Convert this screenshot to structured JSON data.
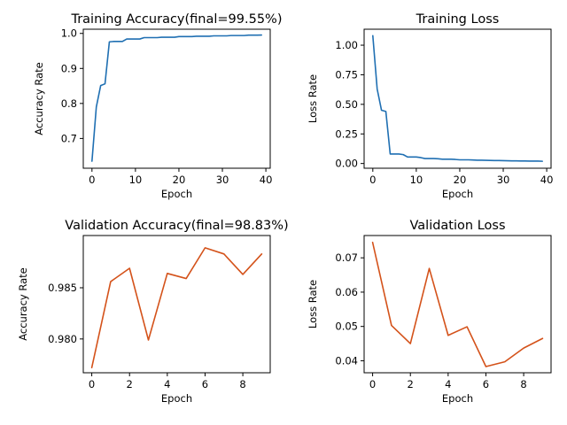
{
  "chart_data": [
    {
      "type": "line",
      "title": "Training Accuracy(final=99.55%)",
      "xlabel": "Epoch",
      "ylabel": "Accuracy Rate",
      "xlim": [
        -2,
        41
      ],
      "ylim": [
        0.615,
        1.012
      ],
      "xticks": [
        0,
        10,
        20,
        30,
        40
      ],
      "xtick_labels": [
        "0",
        "10",
        "20",
        "30",
        "40"
      ],
      "yticks": [
        0.7,
        0.8,
        0.9,
        1.0
      ],
      "ytick_labels": [
        "0.7",
        "0.8",
        "0.9",
        "1.0"
      ],
      "color": "#1f6fb2",
      "series": [
        {
          "x": [
            0,
            1,
            2,
            3,
            4,
            5,
            6,
            7,
            8,
            9,
            10,
            11,
            12,
            13,
            14,
            15,
            16,
            17,
            18,
            19,
            20,
            21,
            22,
            23,
            24,
            25,
            26,
            27,
            28,
            29,
            30,
            31,
            32,
            33,
            34,
            35,
            36,
            37,
            38,
            39
          ],
          "values": [
            0.635,
            0.79,
            0.851,
            0.856,
            0.976,
            0.977,
            0.977,
            0.977,
            0.984,
            0.984,
            0.984,
            0.984,
            0.988,
            0.988,
            0.988,
            0.988,
            0.989,
            0.989,
            0.989,
            0.989,
            0.991,
            0.991,
            0.991,
            0.991,
            0.992,
            0.992,
            0.992,
            0.992,
            0.993,
            0.993,
            0.993,
            0.993,
            0.994,
            0.994,
            0.994,
            0.994,
            0.995,
            0.995,
            0.995,
            0.9955
          ]
        }
      ]
    },
    {
      "type": "line",
      "title": "Training Loss",
      "xlabel": "Epoch",
      "ylabel": "Loss Rate",
      "xlim": [
        -2,
        41
      ],
      "ylim": [
        -0.04,
        1.135
      ],
      "xticks": [
        0,
        10,
        20,
        30,
        40
      ],
      "xtick_labels": [
        "0",
        "10",
        "20",
        "30",
        "40"
      ],
      "yticks": [
        0,
        0.25,
        0.5,
        0.75,
        1.0
      ],
      "ytick_labels": [
        "0.00",
        "0.25",
        "0.50",
        "0.75",
        "1.00"
      ],
      "color": "#1f6fb2",
      "series": [
        {
          "x": [
            0,
            1,
            2,
            3,
            4,
            5,
            6,
            7,
            8,
            9,
            10,
            11,
            12,
            13,
            14,
            15,
            16,
            17,
            18,
            19,
            20,
            21,
            22,
            23,
            24,
            25,
            26,
            27,
            28,
            29,
            30,
            31,
            32,
            33,
            34,
            35,
            36,
            37,
            38,
            39
          ],
          "values": [
            1.08,
            0.63,
            0.45,
            0.44,
            0.08,
            0.08,
            0.08,
            0.075,
            0.055,
            0.055,
            0.055,
            0.05,
            0.042,
            0.042,
            0.042,
            0.04,
            0.036,
            0.036,
            0.036,
            0.034,
            0.031,
            0.031,
            0.031,
            0.03,
            0.028,
            0.028,
            0.027,
            0.026,
            0.025,
            0.025,
            0.024,
            0.023,
            0.022,
            0.022,
            0.021,
            0.021,
            0.02,
            0.02,
            0.02,
            0.019
          ]
        }
      ]
    },
    {
      "type": "line",
      "title": "Validation Accuracy(final=98.83%)",
      "xlabel": "Epoch",
      "ylabel": "Accuracy Rate",
      "xlim": [
        -0.45,
        9.45
      ],
      "ylim": [
        0.9767,
        0.9901
      ],
      "xticks": [
        0,
        2,
        4,
        6,
        8
      ],
      "xtick_labels": [
        "0",
        "2",
        "4",
        "6",
        "8"
      ],
      "yticks": [
        0.98,
        0.985
      ],
      "ytick_labels": [
        "0.980",
        "0.985"
      ],
      "color": "#d4521a",
      "series": [
        {
          "x": [
            0,
            1,
            2,
            3,
            4,
            5,
            6,
            7,
            8,
            9
          ],
          "values": [
            0.9772,
            0.9856,
            0.9869,
            0.9799,
            0.9864,
            0.9859,
            0.9889,
            0.9883,
            0.9863,
            0.9883
          ]
        }
      ]
    },
    {
      "type": "line",
      "title": "Validation Loss",
      "xlabel": "Epoch",
      "ylabel": "Loss Rate",
      "xlim": [
        -0.45,
        9.45
      ],
      "ylim": [
        0.0365,
        0.0765
      ],
      "xticks": [
        0,
        2,
        4,
        6,
        8
      ],
      "xtick_labels": [
        "0",
        "2",
        "4",
        "6",
        "8"
      ],
      "yticks": [
        0.04,
        0.05,
        0.06,
        0.07
      ],
      "ytick_labels": [
        "0.04",
        "0.05",
        "0.06",
        "0.07"
      ],
      "color": "#d4521a",
      "series": [
        {
          "x": [
            0,
            1,
            2,
            3,
            4,
            5,
            6,
            7,
            8,
            9
          ],
          "values": [
            0.0745,
            0.0503,
            0.045,
            0.0669,
            0.0474,
            0.0499,
            0.0383,
            0.0397,
            0.0437,
            0.0465
          ]
        }
      ]
    }
  ]
}
